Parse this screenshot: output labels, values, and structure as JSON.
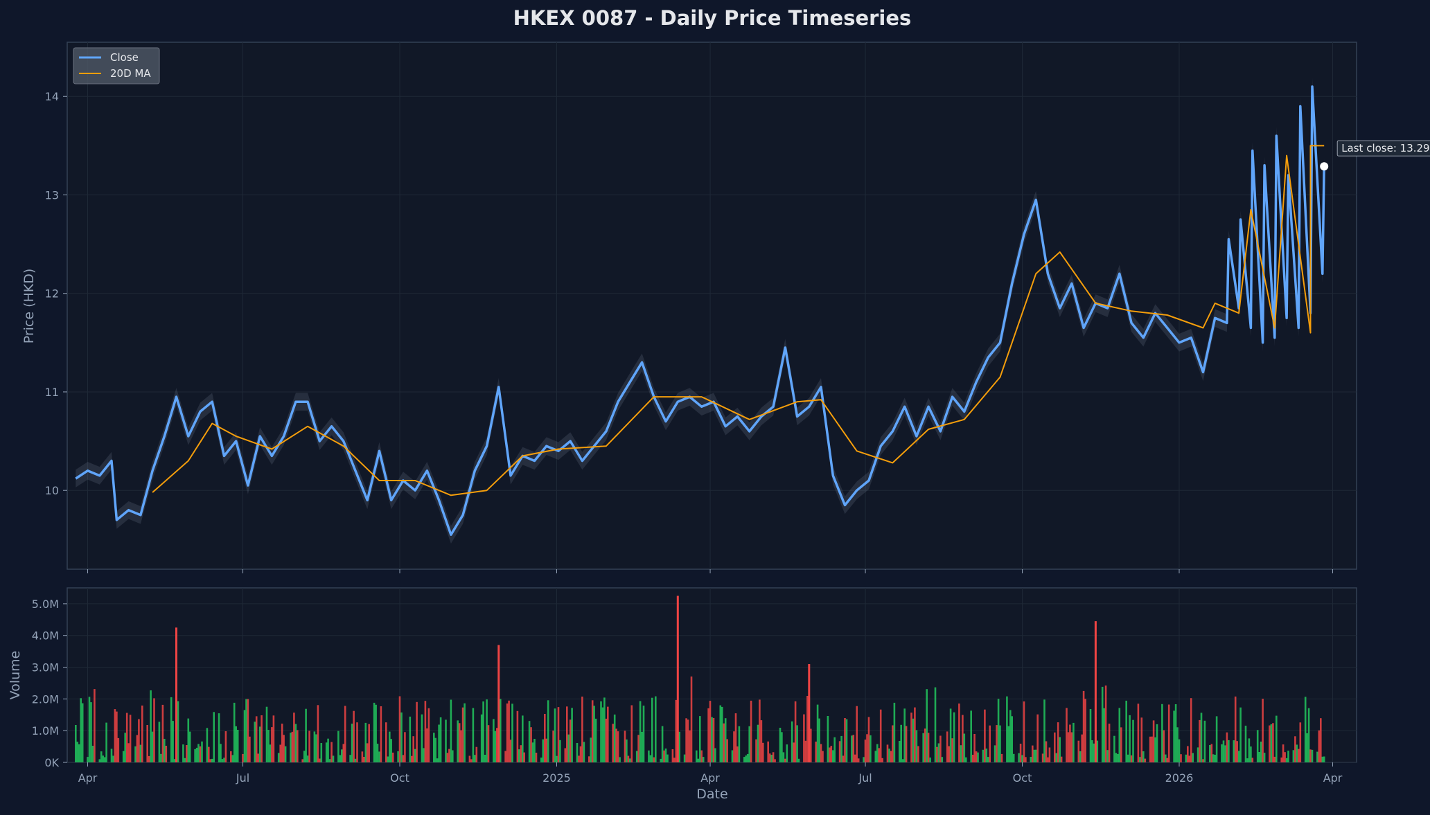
{
  "chart_data": {
    "type": "line",
    "title": "HKEX 0087 - Daily Price Timeseries",
    "xlabel": "Date",
    "x_ticks": [
      "Apr",
      "Jul",
      "Oct",
      "2025",
      "Apr",
      "Jul",
      "Oct",
      "2026",
      "Apr"
    ],
    "x_range": [
      "2024-03-20",
      "2026-04-15"
    ],
    "price_panel": {
      "ylabel": "Price (HKD)",
      "ylim": [
        9.2,
        14.55
      ],
      "yticks": [
        "10",
        "11",
        "12",
        "13",
        "14"
      ],
      "grid": true,
      "legend_position": "top-left",
      "series": [
        {
          "name": "Close",
          "color": "#60a5fa",
          "style": "line",
          "points": [
            [
              "2024-03-25",
              10.12
            ],
            [
              "2024-04-01",
              10.2
            ],
            [
              "2024-04-08",
              10.15
            ],
            [
              "2024-04-15",
              10.3
            ],
            [
              "2024-04-18",
              9.7
            ],
            [
              "2024-04-25",
              9.8
            ],
            [
              "2024-05-02",
              9.75
            ],
            [
              "2024-05-09",
              10.2
            ],
            [
              "2024-05-16",
              10.55
            ],
            [
              "2024-05-23",
              10.95
            ],
            [
              "2024-05-30",
              10.55
            ],
            [
              "2024-06-06",
              10.8
            ],
            [
              "2024-06-13",
              10.9
            ],
            [
              "2024-06-20",
              10.35
            ],
            [
              "2024-06-27",
              10.5
            ],
            [
              "2024-07-04",
              10.05
            ],
            [
              "2024-07-11",
              10.55
            ],
            [
              "2024-07-18",
              10.35
            ],
            [
              "2024-07-25",
              10.55
            ],
            [
              "2024-08-01",
              10.9
            ],
            [
              "2024-08-08",
              10.9
            ],
            [
              "2024-08-15",
              10.5
            ],
            [
              "2024-08-22",
              10.65
            ],
            [
              "2024-08-29",
              10.5
            ],
            [
              "2024-09-05",
              10.2
            ],
            [
              "2024-09-12",
              9.9
            ],
            [
              "2024-09-19",
              10.4
            ],
            [
              "2024-09-26",
              9.9
            ],
            [
              "2024-10-03",
              10.1
            ],
            [
              "2024-10-10",
              10.0
            ],
            [
              "2024-10-17",
              10.2
            ],
            [
              "2024-10-24",
              9.9
            ],
            [
              "2024-10-31",
              9.55
            ],
            [
              "2024-11-07",
              9.75
            ],
            [
              "2024-11-14",
              10.2
            ],
            [
              "2024-11-21",
              10.45
            ],
            [
              "2024-11-28",
              11.05
            ],
            [
              "2024-12-05",
              10.15
            ],
            [
              "2024-12-12",
              10.35
            ],
            [
              "2024-12-19",
              10.3
            ],
            [
              "2024-12-26",
              10.45
            ],
            [
              "2025-01-02",
              10.4
            ],
            [
              "2025-01-09",
              10.5
            ],
            [
              "2025-01-16",
              10.3
            ],
            [
              "2025-01-23",
              10.45
            ],
            [
              "2025-01-30",
              10.6
            ],
            [
              "2025-02-06",
              10.9
            ],
            [
              "2025-02-13",
              11.1
            ],
            [
              "2025-02-20",
              11.3
            ],
            [
              "2025-02-27",
              10.95
            ],
            [
              "2025-03-06",
              10.7
            ],
            [
              "2025-03-13",
              10.9
            ],
            [
              "2025-03-20",
              10.95
            ],
            [
              "2025-03-27",
              10.85
            ],
            [
              "2025-04-03",
              10.9
            ],
            [
              "2025-04-10",
              10.65
            ],
            [
              "2025-04-17",
              10.75
            ],
            [
              "2025-04-24",
              10.6
            ],
            [
              "2025-05-01",
              10.75
            ],
            [
              "2025-05-08",
              10.85
            ],
            [
              "2025-05-15",
              11.45
            ],
            [
              "2025-05-22",
              10.75
            ],
            [
              "2025-05-29",
              10.85
            ],
            [
              "2025-06-05",
              11.05
            ],
            [
              "2025-06-12",
              10.15
            ],
            [
              "2025-06-19",
              9.85
            ],
            [
              "2025-06-26",
              10.0
            ],
            [
              "2025-07-03",
              10.1
            ],
            [
              "2025-07-10",
              10.45
            ],
            [
              "2025-07-17",
              10.6
            ],
            [
              "2025-07-24",
              10.85
            ],
            [
              "2025-07-31",
              10.55
            ],
            [
              "2025-08-07",
              10.85
            ],
            [
              "2025-08-14",
              10.6
            ],
            [
              "2025-08-21",
              10.95
            ],
            [
              "2025-08-28",
              10.8
            ],
            [
              "2025-09-04",
              11.1
            ],
            [
              "2025-09-11",
              11.35
            ],
            [
              "2025-09-18",
              11.5
            ],
            [
              "2025-09-25",
              12.1
            ],
            [
              "2025-10-02",
              12.6
            ],
            [
              "2025-10-09",
              12.95
            ],
            [
              "2025-10-16",
              12.2
            ],
            [
              "2025-10-23",
              11.85
            ],
            [
              "2025-10-30",
              12.1
            ],
            [
              "2025-11-06",
              11.65
            ],
            [
              "2025-11-13",
              11.9
            ],
            [
              "2025-11-20",
              11.85
            ],
            [
              "2025-11-27",
              12.2
            ],
            [
              "2025-12-04",
              11.7
            ],
            [
              "2025-12-11",
              11.55
            ],
            [
              "2025-12-18",
              11.8
            ],
            [
              "2025-12-25",
              11.65
            ],
            [
              "2026-01-01",
              11.5
            ],
            [
              "2026-01-08",
              11.55
            ],
            [
              "2026-01-15",
              11.2
            ],
            [
              "2026-01-22",
              11.75
            ],
            [
              "2026-01-29",
              11.7
            ],
            [
              "2026-02-05",
              11.85
            ],
            [
              "2026-02-12",
              11.65
            ],
            [
              "2026-02-19",
              11.5
            ],
            [
              "2026-02-26",
              11.55
            ],
            [
              "2026-03-05",
              11.75
            ],
            [
              "2026-03-12",
              11.65
            ],
            [
              "2026-03-19",
              11.8
            ],
            [
              "2026-03-26",
              12.2
            ],
            [
              "2026-01-30",
              12.55
            ],
            [
              "2026-02-06",
              12.75
            ],
            [
              "2026-02-13",
              13.45
            ],
            [
              "2026-02-20",
              13.3
            ],
            [
              "2026-02-27",
              13.6
            ],
            [
              "2026-03-06",
              13.2
            ],
            [
              "2026-03-13",
              13.9
            ],
            [
              "2026-03-20",
              14.1
            ],
            [
              "2026-03-27",
              13.3
            ]
          ]
        },
        {
          "name": "20D MA",
          "color": "#f59e0b",
          "style": "line",
          "points": [
            [
              "2024-05-09",
              9.98
            ],
            [
              "2024-05-30",
              10.3
            ],
            [
              "2024-06-13",
              10.68
            ],
            [
              "2024-06-27",
              10.55
            ],
            [
              "2024-07-18",
              10.42
            ],
            [
              "2024-08-08",
              10.65
            ],
            [
              "2024-08-29",
              10.45
            ],
            [
              "2024-09-19",
              10.1
            ],
            [
              "2024-10-10",
              10.1
            ],
            [
              "2024-10-31",
              9.95
            ],
            [
              "2024-11-21",
              10.0
            ],
            [
              "2024-12-12",
              10.35
            ],
            [
              "2025-01-02",
              10.42
            ],
            [
              "2025-01-30",
              10.45
            ],
            [
              "2025-02-27",
              10.95
            ],
            [
              "2025-03-27",
              10.95
            ],
            [
              "2025-04-24",
              10.72
            ],
            [
              "2025-05-22",
              10.9
            ],
            [
              "2025-06-05",
              10.92
            ],
            [
              "2025-06-26",
              10.4
            ],
            [
              "2025-07-17",
              10.28
            ],
            [
              "2025-08-07",
              10.62
            ],
            [
              "2025-08-28",
              10.72
            ],
            [
              "2025-09-18",
              11.15
            ],
            [
              "2025-10-09",
              12.2
            ],
            [
              "2025-10-23",
              12.42
            ],
            [
              "2025-11-13",
              11.9
            ],
            [
              "2025-12-04",
              11.82
            ],
            [
              "2025-12-25",
              11.78
            ],
            [
              "2026-01-15",
              11.65
            ],
            [
              "2026-02-05",
              11.8
            ],
            [
              "2026-02-26",
              11.65
            ],
            [
              "2026-03-19",
              11.6
            ],
            [
              "2026-01-22",
              11.9
            ],
            [
              "2026-02-12",
              12.85
            ],
            [
              "2026-03-05",
              13.4
            ],
            [
              "2026-03-19",
              13.5
            ],
            [
              "2026-03-27",
              13.5
            ]
          ]
        }
      ],
      "annotation": {
        "text": "Last close: 13.290",
        "x": "2026-03-27",
        "y": 13.29
      }
    },
    "volume_panel": {
      "ylabel": "Volume",
      "ylim": [
        0,
        5.5
      ],
      "yticks": [
        "0K",
        "1.0M",
        "2.0M",
        "3.0M",
        "4.0M",
        "5.0M"
      ],
      "grid": true,
      "up_color": "#22c55e",
      "down_color": "#ef4444",
      "notable_bars": [
        {
          "x": "2024-05-23",
          "value_m": 4.25,
          "direction": "down"
        },
        {
          "x": "2024-11-28",
          "value_m": 3.7,
          "direction": "down"
        },
        {
          "x": "2025-03-13",
          "value_m": 5.25,
          "direction": "down"
        },
        {
          "x": "2025-05-29",
          "value_m": 3.1,
          "direction": "down"
        },
        {
          "x": "2025-11-13",
          "value_m": 4.45,
          "direction": "down"
        }
      ]
    },
    "legend": [
      "Close",
      "20D MA"
    ]
  }
}
